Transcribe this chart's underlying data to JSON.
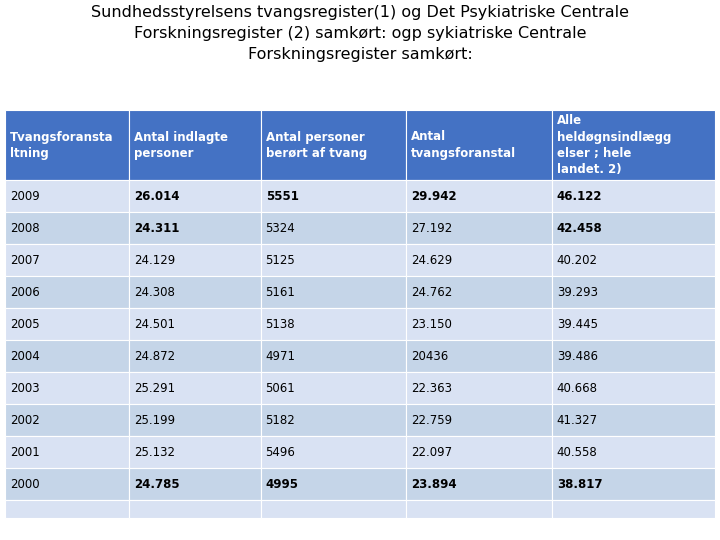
{
  "title": "Sundhedsstyrelsens tvangsregister(1) og Det Psykiatriske Centrale\nForskningsregister (2) samkørt: ogp sykiatriske Centrale\nForskningsregister samkørt:",
  "header": [
    "Tvangsforansta\nltning",
    "Antal indlagte\npersoner",
    "Antal personer\nberørt af tvang",
    "Antal\ntvangsforanstal",
    "Alle\nheldøgnsindlægg\nelser ; hele\nlandet. 2)"
  ],
  "rows": [
    [
      "2009",
      "26.014",
      "5551",
      "29.942",
      "46.122"
    ],
    [
      "2008",
      "24.311",
      "5324",
      "27.192",
      "42.458"
    ],
    [
      "2007",
      "24.129",
      "5125",
      "24.629",
      "40.202"
    ],
    [
      "2006",
      "24.308",
      "5161",
      "24.762",
      "39.293"
    ],
    [
      "2005",
      "24.501",
      "5138",
      "23.150",
      "39.445"
    ],
    [
      "2004",
      "24.872",
      "4971",
      "20436",
      "39.486"
    ],
    [
      "2003",
      "25.291",
      "5061",
      "22.363",
      "40.668"
    ],
    [
      "2002",
      "25.199",
      "5182",
      "22.759",
      "41.327"
    ],
    [
      "2001",
      "25.132",
      "5496",
      "22.097",
      "40.558"
    ],
    [
      "2000",
      "24.785",
      "4995",
      "23.894",
      "38.817"
    ]
  ],
  "bold_cells": {
    "0": [
      1,
      2,
      3,
      4
    ],
    "1": [
      1,
      4
    ],
    "9": [
      1,
      2,
      3,
      4
    ]
  },
  "header_bg": "#4472C4",
  "header_text_color": "#FFFFFF",
  "row_bg_0": "#D9E2F3",
  "row_bg_1": "#C5D5E8",
  "extra_row_bg": "#D9E2F3",
  "title_fontsize": 11.5,
  "header_fontsize": 8.5,
  "cell_fontsize": 8.5
}
